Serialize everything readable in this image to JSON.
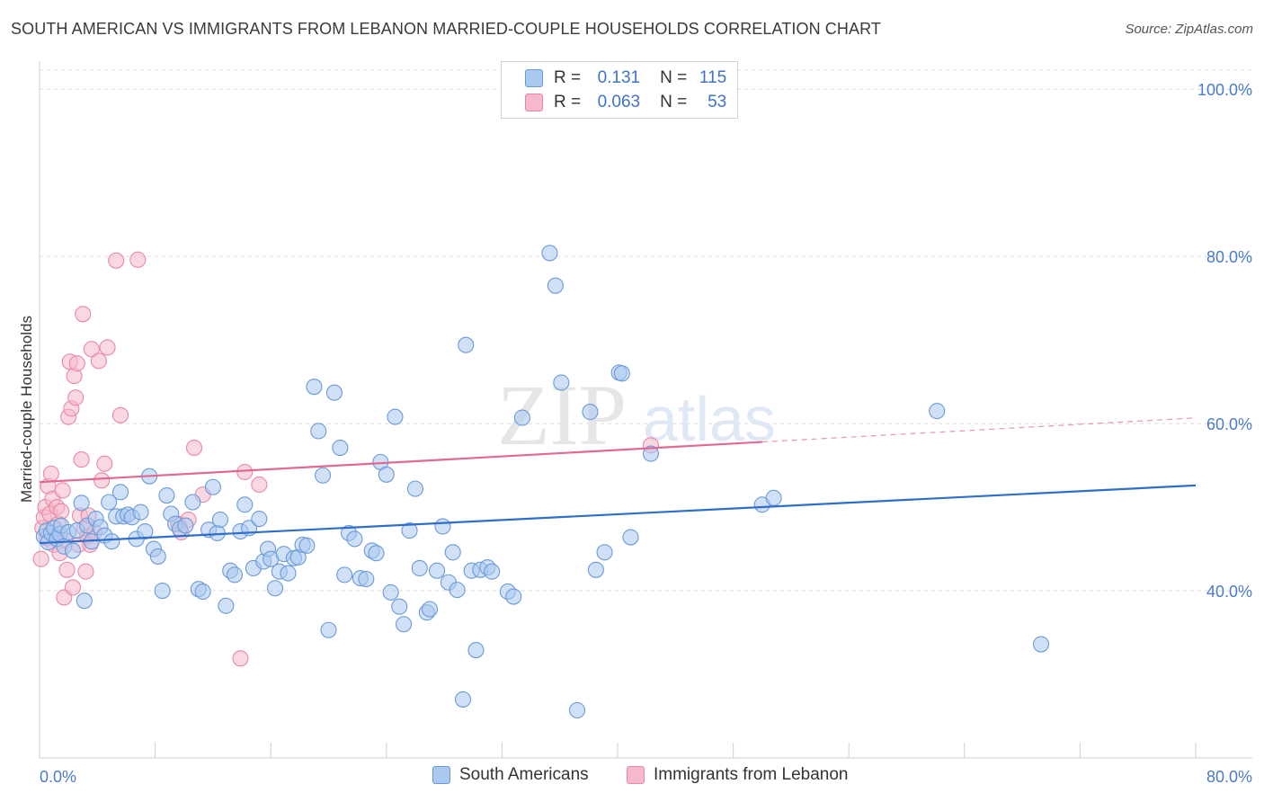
{
  "header": {
    "title": "SOUTH AMERICAN VS IMMIGRANTS FROM LEBANON MARRIED-COUPLE HOUSEHOLDS CORRELATION CHART",
    "source": "Source: ZipAtlas.com"
  },
  "watermark": {
    "part1": "ZIP",
    "part2": "atlas"
  },
  "legend": {
    "rows": [
      {
        "r_label": "R =",
        "r_value": "0.131",
        "n_label": "N =",
        "n_value": "115"
      },
      {
        "r_label": "R =",
        "r_value": "0.063",
        "n_label": "N =",
        "n_value": "53"
      }
    ]
  },
  "colors": {
    "blue_fill": "#aac8f0",
    "blue_stroke": "#6b9ad8",
    "blue_line": "#2f6fcb",
    "pink_fill": "#f6b8cb",
    "pink_stroke": "#e888a6",
    "pink_line": "#e06a92",
    "tick_text": "#4a7cc9",
    "grid": "#dcdcdc"
  },
  "chart_data": {
    "type": "scatter",
    "title": "SOUTH AMERICAN VS IMMIGRANTS FROM LEBANON MARRIED-COUPLE HOUSEHOLDS CORRELATION CHART",
    "xlabel": "",
    "ylabel": "Married-couple Households",
    "xlim": [
      0,
      80
    ],
    "ylim": [
      20,
      104
    ],
    "x_ticks": [
      "0.0%",
      "80.0%"
    ],
    "y_ticks": [
      {
        "value": 40,
        "label": "40.0%"
      },
      {
        "value": 60,
        "label": "60.0%"
      },
      {
        "value": 80,
        "label": "80.0%"
      },
      {
        "value": 100,
        "label": "100.0%"
      }
    ],
    "series": [
      {
        "name": "South Americans",
        "color": "blue",
        "r": 0.131,
        "n": 115,
        "trend": {
          "x0": 0,
          "y0": 45.7,
          "x1": 80,
          "y1": 52.6,
          "dash_to": null
        },
        "points": [
          [
            0.3,
            46.5
          ],
          [
            0.5,
            47.2
          ],
          [
            0.6,
            45.8
          ],
          [
            0.8,
            46.9
          ],
          [
            1.0,
            47.5
          ],
          [
            1.2,
            46.2
          ],
          [
            1.4,
            46.8
          ],
          [
            1.5,
            47.8
          ],
          [
            1.7,
            45.3
          ],
          [
            2.0,
            47.0
          ],
          [
            2.3,
            44.8
          ],
          [
            2.6,
            47.2
          ],
          [
            2.9,
            50.5
          ],
          [
            3.1,
            38.8
          ],
          [
            3.3,
            47.8
          ],
          [
            3.6,
            45.9
          ],
          [
            3.9,
            48.6
          ],
          [
            4.2,
            47.6
          ],
          [
            4.5,
            46.6
          ],
          [
            4.8,
            50.6
          ],
          [
            5.0,
            45.9
          ],
          [
            5.3,
            48.9
          ],
          [
            5.6,
            51.8
          ],
          [
            5.8,
            48.9
          ],
          [
            6.1,
            49.1
          ],
          [
            6.4,
            48.8
          ],
          [
            6.7,
            46.2
          ],
          [
            7.0,
            49.4
          ],
          [
            7.3,
            47.1
          ],
          [
            7.6,
            53.7
          ],
          [
            7.9,
            45.0
          ],
          [
            8.2,
            44.1
          ],
          [
            8.5,
            40.0
          ],
          [
            8.8,
            51.4
          ],
          [
            9.1,
            49.2
          ],
          [
            9.4,
            48.0
          ],
          [
            9.7,
            47.4
          ],
          [
            10.1,
            47.8
          ],
          [
            10.6,
            50.6
          ],
          [
            11.0,
            40.2
          ],
          [
            11.3,
            39.9
          ],
          [
            11.7,
            47.3
          ],
          [
            12.0,
            52.4
          ],
          [
            12.3,
            46.9
          ],
          [
            12.5,
            48.5
          ],
          [
            12.9,
            38.2
          ],
          [
            13.2,
            42.4
          ],
          [
            13.5,
            41.9
          ],
          [
            13.9,
            47.1
          ],
          [
            14.2,
            50.3
          ],
          [
            14.5,
            47.5
          ],
          [
            14.8,
            42.7
          ],
          [
            15.2,
            48.6
          ],
          [
            15.5,
            43.5
          ],
          [
            15.8,
            45.0
          ],
          [
            16.0,
            43.8
          ],
          [
            16.3,
            40.3
          ],
          [
            16.6,
            42.3
          ],
          [
            16.9,
            44.4
          ],
          [
            17.2,
            42.1
          ],
          [
            17.6,
            43.9
          ],
          [
            17.9,
            44.0
          ],
          [
            18.2,
            45.5
          ],
          [
            18.5,
            45.4
          ],
          [
            19.0,
            64.4
          ],
          [
            19.3,
            59.1
          ],
          [
            19.6,
            53.8
          ],
          [
            20.0,
            35.3
          ],
          [
            20.4,
            63.7
          ],
          [
            20.8,
            57.1
          ],
          [
            21.1,
            41.9
          ],
          [
            21.4,
            46.9
          ],
          [
            21.8,
            46.2
          ],
          [
            22.2,
            41.5
          ],
          [
            22.6,
            41.4
          ],
          [
            23.0,
            44.8
          ],
          [
            23.3,
            44.5
          ],
          [
            23.6,
            55.4
          ],
          [
            24.0,
            53.9
          ],
          [
            24.3,
            39.8
          ],
          [
            24.6,
            60.8
          ],
          [
            24.9,
            38.1
          ],
          [
            25.2,
            36.0
          ],
          [
            25.6,
            47.2
          ],
          [
            26.0,
            52.2
          ],
          [
            26.3,
            42.7
          ],
          [
            26.8,
            37.4
          ],
          [
            27.0,
            37.8
          ],
          [
            27.5,
            42.4
          ],
          [
            27.9,
            47.7
          ],
          [
            28.3,
            41.0
          ],
          [
            28.6,
            44.6
          ],
          [
            28.9,
            40.1
          ],
          [
            29.3,
            27.0
          ],
          [
            29.5,
            69.4
          ],
          [
            29.9,
            42.4
          ],
          [
            30.2,
            32.9
          ],
          [
            30.5,
            42.5
          ],
          [
            31.0,
            42.8
          ],
          [
            31.3,
            42.3
          ],
          [
            32.4,
            39.9
          ],
          [
            32.8,
            39.3
          ],
          [
            33.4,
            60.7
          ],
          [
            35.3,
            80.4
          ],
          [
            35.7,
            76.5
          ],
          [
            36.1,
            64.9
          ],
          [
            37.2,
            25.7
          ],
          [
            38.1,
            61.4
          ],
          [
            38.5,
            42.5
          ],
          [
            39.1,
            44.6
          ],
          [
            40.1,
            66.1
          ],
          [
            40.3,
            66.0
          ],
          [
            40.9,
            46.4
          ],
          [
            42.3,
            56.4
          ],
          [
            50.0,
            50.3
          ],
          [
            50.8,
            51.1
          ],
          [
            62.1,
            61.5
          ],
          [
            69.3,
            33.6
          ]
        ]
      },
      {
        "name": "Immigrants from Lebanon",
        "color": "pink",
        "r": 0.063,
        "n": 53,
        "trend": {
          "x0": 0,
          "y0": 53.0,
          "x1": 50,
          "y1": 57.8,
          "dash_to": 80
        },
        "points": [
          [
            0.1,
            43.8
          ],
          [
            0.2,
            47.5
          ],
          [
            0.3,
            48.8
          ],
          [
            0.4,
            50.0
          ],
          [
            0.5,
            46.3
          ],
          [
            0.6,
            52.5
          ],
          [
            0.7,
            49.2
          ],
          [
            0.8,
            54.0
          ],
          [
            0.9,
            51.0
          ],
          [
            1.0,
            45.5
          ],
          [
            1.1,
            47.0
          ],
          [
            1.2,
            50.0
          ],
          [
            1.3,
            48.0
          ],
          [
            1.4,
            44.5
          ],
          [
            1.5,
            49.5
          ],
          [
            1.6,
            52.0
          ],
          [
            1.7,
            39.2
          ],
          [
            1.8,
            46.0
          ],
          [
            1.9,
            42.5
          ],
          [
            2.0,
            60.8
          ],
          [
            2.1,
            67.4
          ],
          [
            2.2,
            61.8
          ],
          [
            2.3,
            40.4
          ],
          [
            2.4,
            65.7
          ],
          [
            2.5,
            63.1
          ],
          [
            2.6,
            67.2
          ],
          [
            2.7,
            45.5
          ],
          [
            2.8,
            49.0
          ],
          [
            2.9,
            55.7
          ],
          [
            3.0,
            73.1
          ],
          [
            3.1,
            47.5
          ],
          [
            3.2,
            42.3
          ],
          [
            3.3,
            46.5
          ],
          [
            3.4,
            49.0
          ],
          [
            3.5,
            45.5
          ],
          [
            3.6,
            68.9
          ],
          [
            3.8,
            47.0
          ],
          [
            4.1,
            67.5
          ],
          [
            4.3,
            53.2
          ],
          [
            4.5,
            55.2
          ],
          [
            4.7,
            69.1
          ],
          [
            5.3,
            79.5
          ],
          [
            5.6,
            61.0
          ],
          [
            6.8,
            79.6
          ],
          [
            9.6,
            48.0
          ],
          [
            9.8,
            47.0
          ],
          [
            10.3,
            48.5
          ],
          [
            10.7,
            57.1
          ],
          [
            11.3,
            51.5
          ],
          [
            13.9,
            31.9
          ],
          [
            14.2,
            54.2
          ],
          [
            15.2,
            52.7
          ],
          [
            42.3,
            57.4
          ]
        ]
      }
    ]
  },
  "bottom_legend": {
    "series1": "South Americans",
    "series2": "Immigrants from Lebanon"
  }
}
